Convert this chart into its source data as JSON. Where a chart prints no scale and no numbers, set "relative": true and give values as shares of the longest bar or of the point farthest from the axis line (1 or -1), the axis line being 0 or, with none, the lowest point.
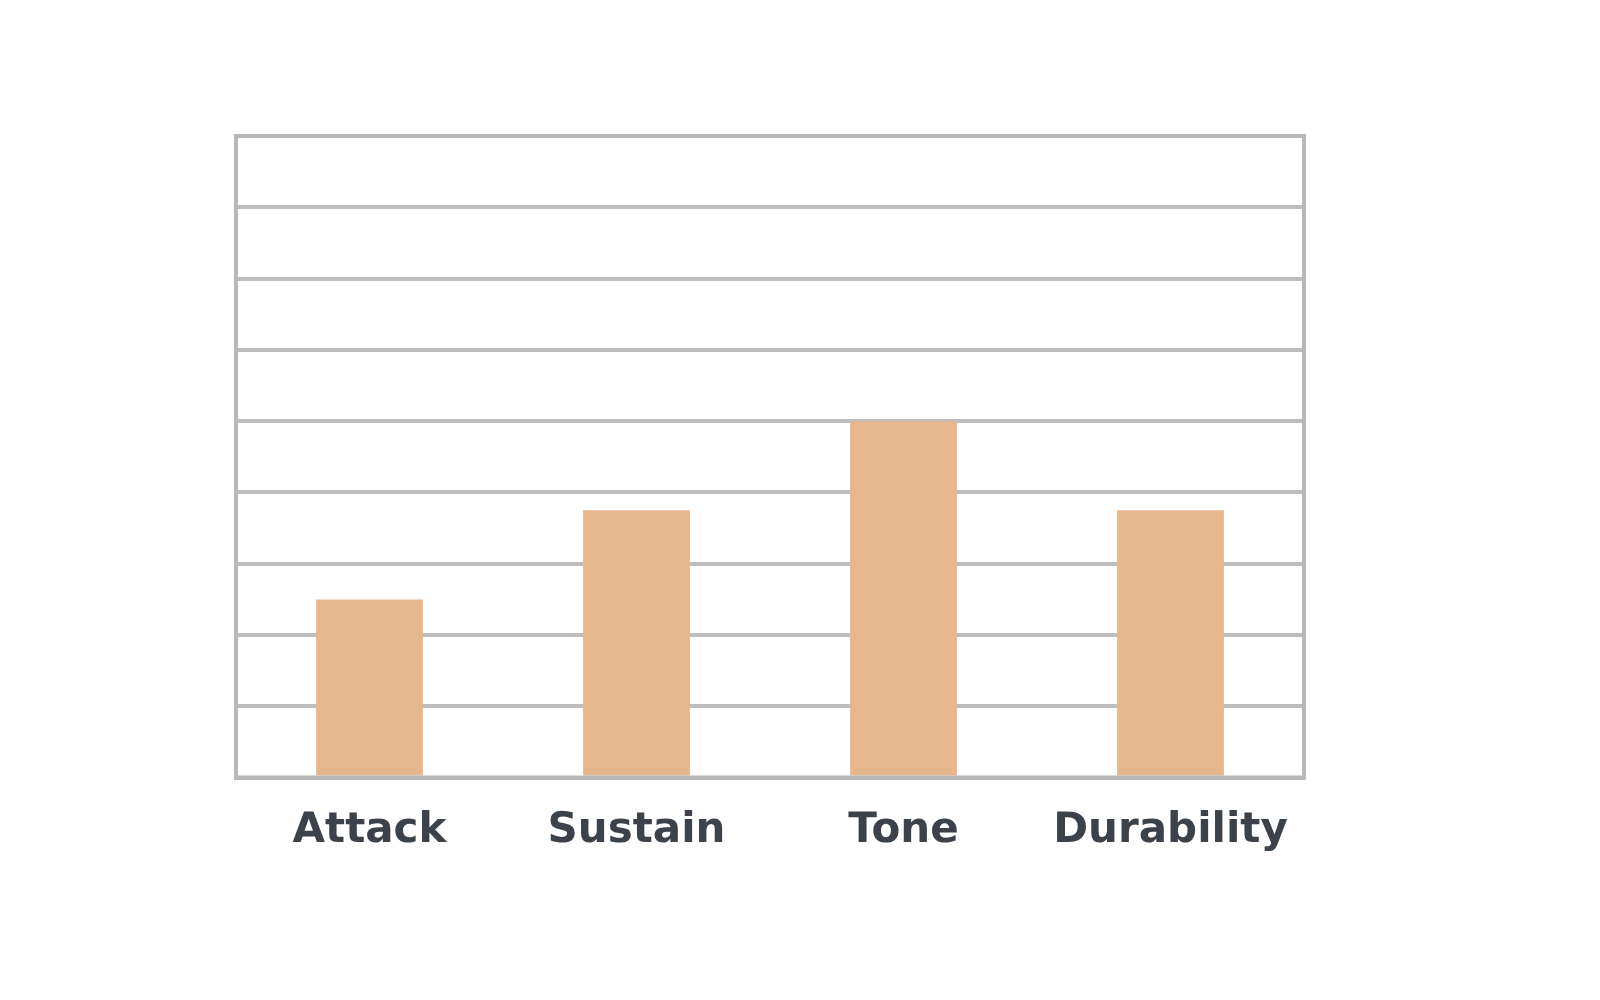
{
  "chart_data": {
    "type": "bar",
    "relative": true,
    "grid": "y",
    "legend": false,
    "categories": [
      "Attack",
      "Sustain",
      "Tone",
      "Durability"
    ],
    "series": [
      {
        "color": "#e6b68c",
        "values": [
          0.5,
          0.75,
          1,
          0.75
        ]
      }
    ]
  }
}
